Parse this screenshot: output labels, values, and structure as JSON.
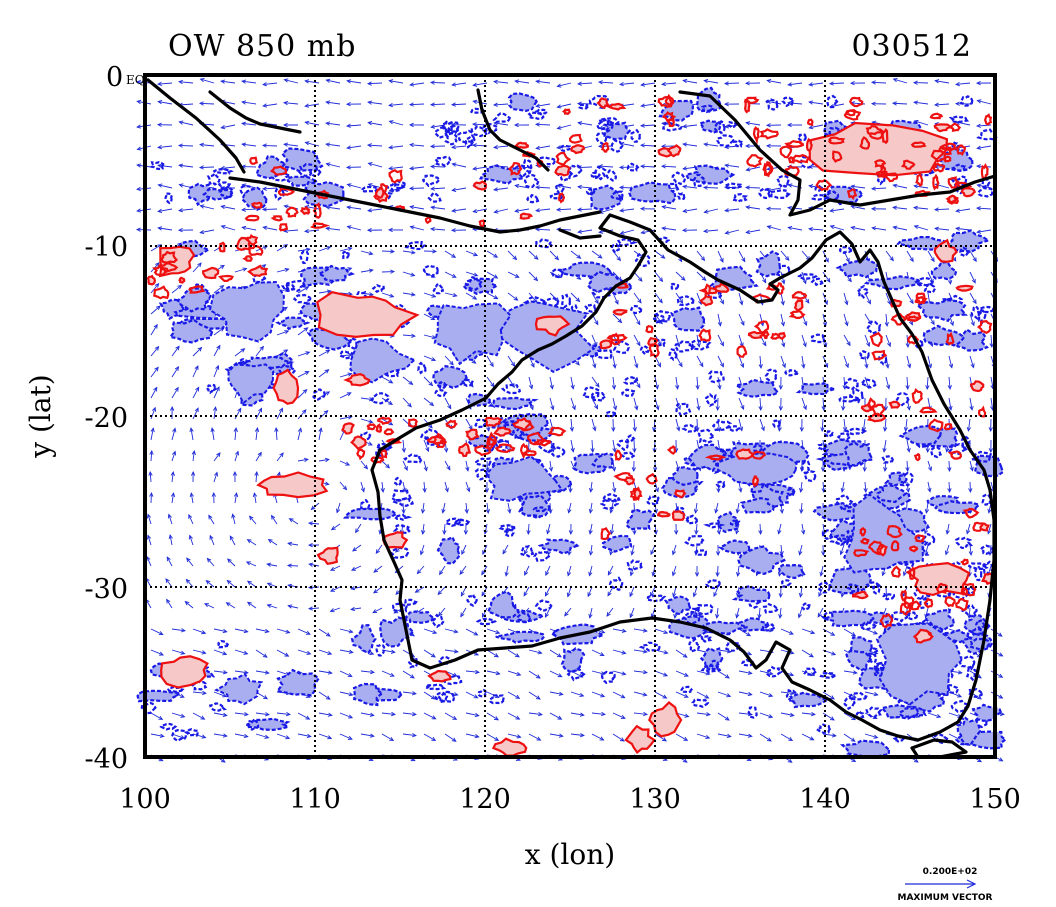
{
  "title_left": "OW 850 mb",
  "title_right": "030512",
  "corner_label": "0",
  "corner_sublabel": "EQ",
  "xlabel": "x (lon)",
  "ylabel": "y (lat)",
  "x_ticks": [
    "100",
    "110",
    "120",
    "130",
    "140",
    "150"
  ],
  "y_ticks": [
    "-10",
    "-20",
    "-30",
    "-40"
  ],
  "vector_legend": {
    "magnitude": "0.200E+02",
    "caption": "MAXIMUM VECTOR"
  },
  "colors": {
    "positive_contour": "#ee1111",
    "positive_fill": "#f7c8c8",
    "negative_contour": "#1a1ae6",
    "negative_fill": "#a8aef0",
    "vector": "#1f2bd9",
    "coastline": "#000000"
  },
  "map_extent": {
    "lon_range": [
      100,
      150
    ],
    "lat_range": [
      -40,
      0
    ],
    "grid_lon": [
      110,
      120,
      130,
      140
    ],
    "grid_lat": [
      -10,
      -20,
      -30
    ]
  }
}
